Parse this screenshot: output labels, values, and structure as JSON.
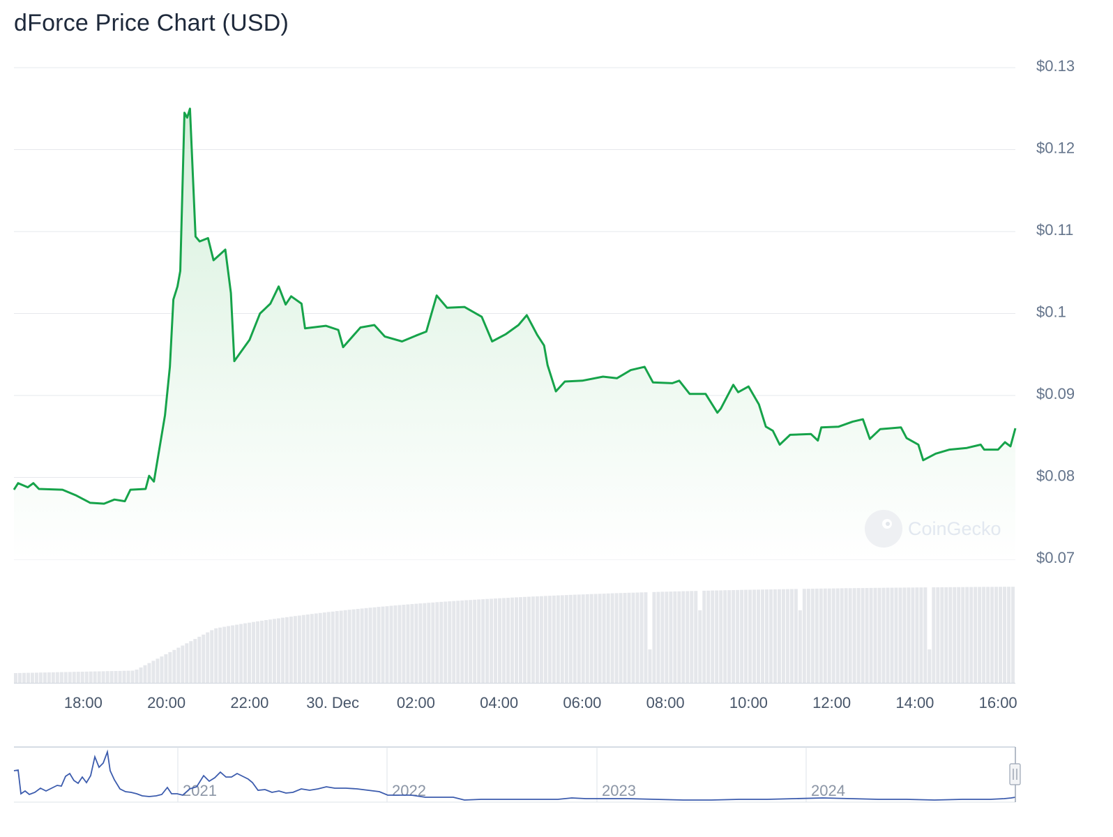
{
  "title": "dForce Price Chart (USD)",
  "watermark": "CoinGecko",
  "colors": {
    "line": "#16a34a",
    "fill_top": "#d6f0dc",
    "volume": "#e5e7eb",
    "grid": "#e6e8ec",
    "navigator_line": "#3b5bad"
  },
  "navigator": {
    "years": [
      "2021",
      "2022",
      "2023",
      "2024"
    ]
  },
  "chart_data": {
    "type": "line",
    "title": "dForce Price Chart (USD)",
    "y_unit": "USD",
    "ylim": [
      0.07,
      0.13
    ],
    "y_ticks": [
      "$0.13",
      "$0.12",
      "$0.11",
      "$0.1",
      "$0.09",
      "$0.08",
      "$0.07"
    ],
    "y_tick_values": [
      0.13,
      0.12,
      0.11,
      0.1,
      0.09,
      0.08,
      0.07
    ],
    "x_start": "2024-12-29 16:20",
    "x_end": "2024-12-30 16:25",
    "x_ticks": [
      {
        "label": "18:00",
        "time": "2024-12-29 18:00"
      },
      {
        "label": "20:00",
        "time": "2024-12-29 20:00"
      },
      {
        "label": "22:00",
        "time": "2024-12-29 22:00"
      },
      {
        "label": "30. Dec",
        "time": "2024-12-30 00:00"
      },
      {
        "label": "02:00",
        "time": "2024-12-30 02:00"
      },
      {
        "label": "04:00",
        "time": "2024-12-30 04:00"
      },
      {
        "label": "06:00",
        "time": "2024-12-30 06:00"
      },
      {
        "label": "08:00",
        "time": "2024-12-30 08:00"
      },
      {
        "label": "10:00",
        "time": "2024-12-30 10:00"
      },
      {
        "label": "12:00",
        "time": "2024-12-30 12:00"
      },
      {
        "label": "14:00",
        "time": "2024-12-30 14:00"
      },
      {
        "label": "16:00",
        "time": "2024-12-30 16:00"
      }
    ],
    "grid": true,
    "series": [
      {
        "values": [
          [
            "2024-12-29 16:20",
            0.0785
          ],
          [
            "2024-12-29 16:26",
            0.0793
          ],
          [
            "2024-12-29 16:40",
            0.0788
          ],
          [
            "2024-12-29 16:48",
            0.0793
          ],
          [
            "2024-12-29 16:56",
            0.0786
          ],
          [
            "2024-12-29 17:30",
            0.0785
          ],
          [
            "2024-12-29 17:50",
            0.0778
          ],
          [
            "2024-12-29 18:10",
            0.0769
          ],
          [
            "2024-12-29 18:30",
            0.0768
          ],
          [
            "2024-12-29 18:45",
            0.0773
          ],
          [
            "2024-12-29 19:00",
            0.0771
          ],
          [
            "2024-12-29 19:08",
            0.0785
          ],
          [
            "2024-12-29 19:30",
            0.0786
          ],
          [
            "2024-12-29 19:35",
            0.0802
          ],
          [
            "2024-12-29 19:42",
            0.0795
          ],
          [
            "2024-12-29 19:58",
            0.0876
          ],
          [
            "2024-12-29 20:05",
            0.0935
          ],
          [
            "2024-12-29 20:10",
            0.1017
          ],
          [
            "2024-12-29 20:16",
            0.1033
          ],
          [
            "2024-12-29 20:20",
            0.1052
          ],
          [
            "2024-12-29 20:26",
            0.1245
          ],
          [
            "2024-12-29 20:30",
            0.1239
          ],
          [
            "2024-12-29 20:34",
            0.125
          ],
          [
            "2024-12-29 20:42",
            0.1094
          ],
          [
            "2024-12-29 20:48",
            0.1088
          ],
          [
            "2024-12-29 21:00",
            0.1092
          ],
          [
            "2024-12-29 21:08",
            0.1065
          ],
          [
            "2024-12-29 21:25",
            0.1078
          ],
          [
            "2024-12-29 21:33",
            0.1025
          ],
          [
            "2024-12-29 21:38",
            0.0942
          ],
          [
            "2024-12-29 22:00",
            0.0968
          ],
          [
            "2024-12-29 22:15",
            0.1
          ],
          [
            "2024-12-29 22:30",
            0.1012
          ],
          [
            "2024-12-29 22:42",
            0.1033
          ],
          [
            "2024-12-29 22:52",
            0.1011
          ],
          [
            "2024-12-29 23:00",
            0.1021
          ],
          [
            "2024-12-29 23:15",
            0.1012
          ],
          [
            "2024-12-29 23:20",
            0.0982
          ],
          [
            "2024-12-29 23:50",
            0.0985
          ],
          [
            "2024-12-30 00:08",
            0.098
          ],
          [
            "2024-12-30 00:15",
            0.0959
          ],
          [
            "2024-12-30 00:40",
            0.0983
          ],
          [
            "2024-12-30 01:00",
            0.0986
          ],
          [
            "2024-12-30 01:15",
            0.0972
          ],
          [
            "2024-12-30 01:40",
            0.0966
          ],
          [
            "2024-12-30 02:00",
            0.0973
          ],
          [
            "2024-12-30 02:15",
            0.0978
          ],
          [
            "2024-12-30 02:30",
            0.1022
          ],
          [
            "2024-12-30 02:45",
            0.1007
          ],
          [
            "2024-12-30 03:10",
            0.1008
          ],
          [
            "2024-12-30 03:35",
            0.0996
          ],
          [
            "2024-12-30 03:50",
            0.0966
          ],
          [
            "2024-12-30 04:10",
            0.0975
          ],
          [
            "2024-12-30 04:28",
            0.0986
          ],
          [
            "2024-12-30 04:40",
            0.0998
          ],
          [
            "2024-12-30 04:55",
            0.0974
          ],
          [
            "2024-12-30 05:05",
            0.0961
          ],
          [
            "2024-12-30 05:10",
            0.0937
          ],
          [
            "2024-12-30 05:22",
            0.0905
          ],
          [
            "2024-12-30 05:35",
            0.0917
          ],
          [
            "2024-12-30 06:00",
            0.0918
          ],
          [
            "2024-12-30 06:30",
            0.0923
          ],
          [
            "2024-12-30 06:50",
            0.0921
          ],
          [
            "2024-12-30 07:10",
            0.0931
          ],
          [
            "2024-12-30 07:30",
            0.0935
          ],
          [
            "2024-12-30 07:42",
            0.0916
          ],
          [
            "2024-12-30 08:10",
            0.0915
          ],
          [
            "2024-12-30 08:20",
            0.0918
          ],
          [
            "2024-12-30 08:35",
            0.0902
          ],
          [
            "2024-12-30 08:58",
            0.0902
          ],
          [
            "2024-12-30 09:15",
            0.0879
          ],
          [
            "2024-12-30 09:20",
            0.0884
          ],
          [
            "2024-12-30 09:38",
            0.0913
          ],
          [
            "2024-12-30 09:45",
            0.0904
          ],
          [
            "2024-12-30 10:00",
            0.0911
          ],
          [
            "2024-12-30 10:15",
            0.0889
          ],
          [
            "2024-12-30 10:25",
            0.0862
          ],
          [
            "2024-12-30 10:35",
            0.0857
          ],
          [
            "2024-12-30 10:45",
            0.084
          ],
          [
            "2024-12-30 11:00",
            0.0852
          ],
          [
            "2024-12-30 11:30",
            0.0853
          ],
          [
            "2024-12-30 11:40",
            0.0845
          ],
          [
            "2024-12-30 11:45",
            0.0861
          ],
          [
            "2024-12-30 12:10",
            0.0862
          ],
          [
            "2024-12-30 12:30",
            0.0868
          ],
          [
            "2024-12-30 12:45",
            0.0871
          ],
          [
            "2024-12-30 12:55",
            0.0847
          ],
          [
            "2024-12-30 13:10",
            0.0859
          ],
          [
            "2024-12-30 13:40",
            0.0861
          ],
          [
            "2024-12-30 13:48",
            0.0848
          ],
          [
            "2024-12-30 14:05",
            0.084
          ],
          [
            "2024-12-30 14:12",
            0.0821
          ],
          [
            "2024-12-30 14:30",
            0.0829
          ],
          [
            "2024-12-30 14:50",
            0.0834
          ],
          [
            "2024-12-30 15:15",
            0.0836
          ],
          [
            "2024-12-30 15:35",
            0.084
          ],
          [
            "2024-12-30 15:40",
            0.0834
          ],
          [
            "2024-12-30 16:00",
            0.0834
          ],
          [
            "2024-12-30 16:10",
            0.0843
          ],
          [
            "2024-12-30 16:18",
            0.0838
          ],
          [
            "2024-12-30 16:25",
            0.086
          ]
        ]
      }
    ]
  }
}
